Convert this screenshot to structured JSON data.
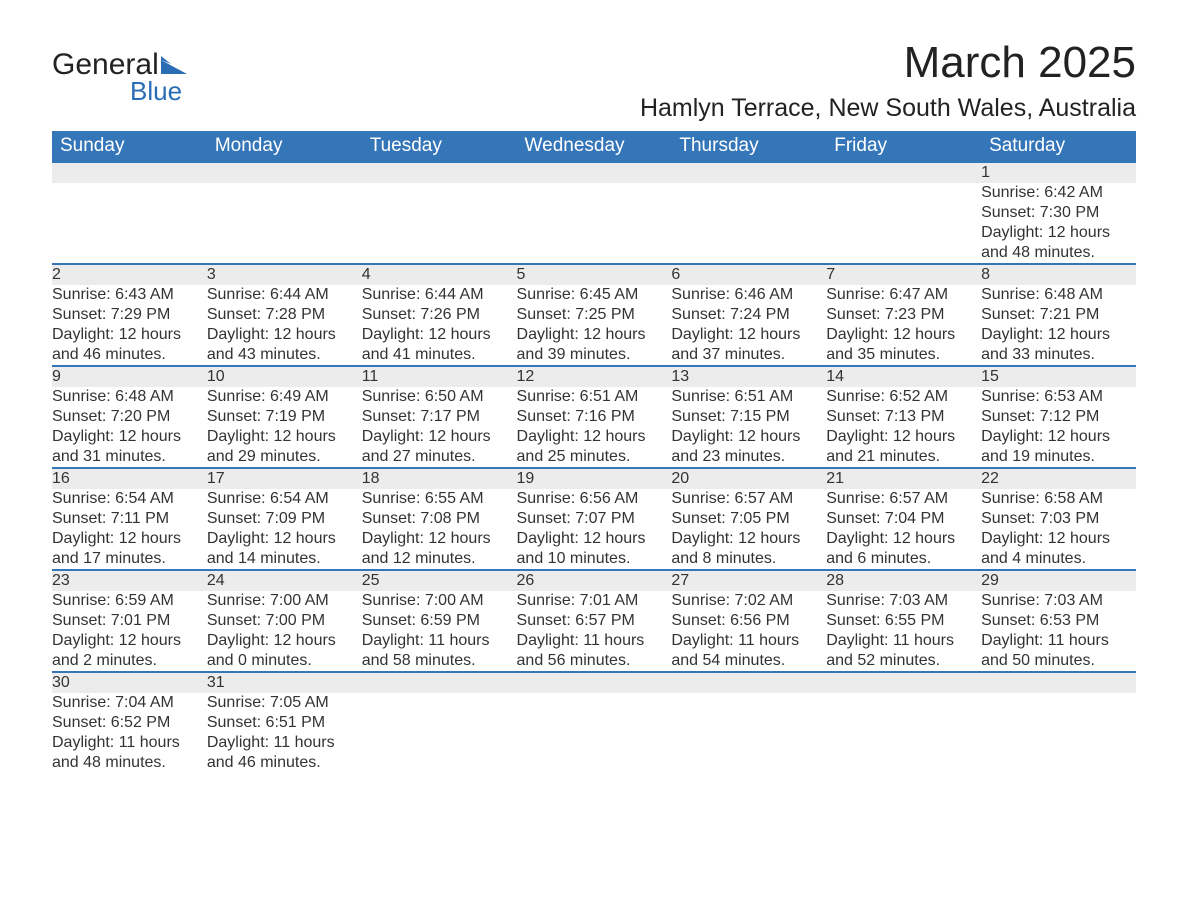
{
  "logo": {
    "word1": "General",
    "word2": "Blue",
    "text_color": "#222222",
    "accent_color": "#2a6db5"
  },
  "title": "March 2025",
  "location": "Hamlyn Terrace, New South Wales, Australia",
  "header_bg": "#3576b9",
  "header_text_color": "#ffffff",
  "daynum_bg": "#ececec",
  "row_divider_color": "#3576b9",
  "body_text_color": "#333333",
  "font_family": "Arial, Helvetica, sans-serif",
  "title_fontsize_pt": 33,
  "location_fontsize_pt": 19,
  "header_fontsize_pt": 14,
  "cell_fontsize_pt": 12,
  "day_headers": [
    "Sunday",
    "Monday",
    "Tuesday",
    "Wednesday",
    "Thursday",
    "Friday",
    "Saturday"
  ],
  "weeks": [
    [
      null,
      null,
      null,
      null,
      null,
      null,
      {
        "n": "1",
        "sunrise": "Sunrise: 6:42 AM",
        "sunset": "Sunset: 7:30 PM",
        "day1": "Daylight: 12 hours",
        "day2": "and 48 minutes."
      }
    ],
    [
      {
        "n": "2",
        "sunrise": "Sunrise: 6:43 AM",
        "sunset": "Sunset: 7:29 PM",
        "day1": "Daylight: 12 hours",
        "day2": "and 46 minutes."
      },
      {
        "n": "3",
        "sunrise": "Sunrise: 6:44 AM",
        "sunset": "Sunset: 7:28 PM",
        "day1": "Daylight: 12 hours",
        "day2": "and 43 minutes."
      },
      {
        "n": "4",
        "sunrise": "Sunrise: 6:44 AM",
        "sunset": "Sunset: 7:26 PM",
        "day1": "Daylight: 12 hours",
        "day2": "and 41 minutes."
      },
      {
        "n": "5",
        "sunrise": "Sunrise: 6:45 AM",
        "sunset": "Sunset: 7:25 PM",
        "day1": "Daylight: 12 hours",
        "day2": "and 39 minutes."
      },
      {
        "n": "6",
        "sunrise": "Sunrise: 6:46 AM",
        "sunset": "Sunset: 7:24 PM",
        "day1": "Daylight: 12 hours",
        "day2": "and 37 minutes."
      },
      {
        "n": "7",
        "sunrise": "Sunrise: 6:47 AM",
        "sunset": "Sunset: 7:23 PM",
        "day1": "Daylight: 12 hours",
        "day2": "and 35 minutes."
      },
      {
        "n": "8",
        "sunrise": "Sunrise: 6:48 AM",
        "sunset": "Sunset: 7:21 PM",
        "day1": "Daylight: 12 hours",
        "day2": "and 33 minutes."
      }
    ],
    [
      {
        "n": "9",
        "sunrise": "Sunrise: 6:48 AM",
        "sunset": "Sunset: 7:20 PM",
        "day1": "Daylight: 12 hours",
        "day2": "and 31 minutes."
      },
      {
        "n": "10",
        "sunrise": "Sunrise: 6:49 AM",
        "sunset": "Sunset: 7:19 PM",
        "day1": "Daylight: 12 hours",
        "day2": "and 29 minutes."
      },
      {
        "n": "11",
        "sunrise": "Sunrise: 6:50 AM",
        "sunset": "Sunset: 7:17 PM",
        "day1": "Daylight: 12 hours",
        "day2": "and 27 minutes."
      },
      {
        "n": "12",
        "sunrise": "Sunrise: 6:51 AM",
        "sunset": "Sunset: 7:16 PM",
        "day1": "Daylight: 12 hours",
        "day2": "and 25 minutes."
      },
      {
        "n": "13",
        "sunrise": "Sunrise: 6:51 AM",
        "sunset": "Sunset: 7:15 PM",
        "day1": "Daylight: 12 hours",
        "day2": "and 23 minutes."
      },
      {
        "n": "14",
        "sunrise": "Sunrise: 6:52 AM",
        "sunset": "Sunset: 7:13 PM",
        "day1": "Daylight: 12 hours",
        "day2": "and 21 minutes."
      },
      {
        "n": "15",
        "sunrise": "Sunrise: 6:53 AM",
        "sunset": "Sunset: 7:12 PM",
        "day1": "Daylight: 12 hours",
        "day2": "and 19 minutes."
      }
    ],
    [
      {
        "n": "16",
        "sunrise": "Sunrise: 6:54 AM",
        "sunset": "Sunset: 7:11 PM",
        "day1": "Daylight: 12 hours",
        "day2": "and 17 minutes."
      },
      {
        "n": "17",
        "sunrise": "Sunrise: 6:54 AM",
        "sunset": "Sunset: 7:09 PM",
        "day1": "Daylight: 12 hours",
        "day2": "and 14 minutes."
      },
      {
        "n": "18",
        "sunrise": "Sunrise: 6:55 AM",
        "sunset": "Sunset: 7:08 PM",
        "day1": "Daylight: 12 hours",
        "day2": "and 12 minutes."
      },
      {
        "n": "19",
        "sunrise": "Sunrise: 6:56 AM",
        "sunset": "Sunset: 7:07 PM",
        "day1": "Daylight: 12 hours",
        "day2": "and 10 minutes."
      },
      {
        "n": "20",
        "sunrise": "Sunrise: 6:57 AM",
        "sunset": "Sunset: 7:05 PM",
        "day1": "Daylight: 12 hours",
        "day2": "and 8 minutes."
      },
      {
        "n": "21",
        "sunrise": "Sunrise: 6:57 AM",
        "sunset": "Sunset: 7:04 PM",
        "day1": "Daylight: 12 hours",
        "day2": "and 6 minutes."
      },
      {
        "n": "22",
        "sunrise": "Sunrise: 6:58 AM",
        "sunset": "Sunset: 7:03 PM",
        "day1": "Daylight: 12 hours",
        "day2": "and 4 minutes."
      }
    ],
    [
      {
        "n": "23",
        "sunrise": "Sunrise: 6:59 AM",
        "sunset": "Sunset: 7:01 PM",
        "day1": "Daylight: 12 hours",
        "day2": "and 2 minutes."
      },
      {
        "n": "24",
        "sunrise": "Sunrise: 7:00 AM",
        "sunset": "Sunset: 7:00 PM",
        "day1": "Daylight: 12 hours",
        "day2": "and 0 minutes."
      },
      {
        "n": "25",
        "sunrise": "Sunrise: 7:00 AM",
        "sunset": "Sunset: 6:59 PM",
        "day1": "Daylight: 11 hours",
        "day2": "and 58 minutes."
      },
      {
        "n": "26",
        "sunrise": "Sunrise: 7:01 AM",
        "sunset": "Sunset: 6:57 PM",
        "day1": "Daylight: 11 hours",
        "day2": "and 56 minutes."
      },
      {
        "n": "27",
        "sunrise": "Sunrise: 7:02 AM",
        "sunset": "Sunset: 6:56 PM",
        "day1": "Daylight: 11 hours",
        "day2": "and 54 minutes."
      },
      {
        "n": "28",
        "sunrise": "Sunrise: 7:03 AM",
        "sunset": "Sunset: 6:55 PM",
        "day1": "Daylight: 11 hours",
        "day2": "and 52 minutes."
      },
      {
        "n": "29",
        "sunrise": "Sunrise: 7:03 AM",
        "sunset": "Sunset: 6:53 PM",
        "day1": "Daylight: 11 hours",
        "day2": "and 50 minutes."
      }
    ],
    [
      {
        "n": "30",
        "sunrise": "Sunrise: 7:04 AM",
        "sunset": "Sunset: 6:52 PM",
        "day1": "Daylight: 11 hours",
        "day2": "and 48 minutes."
      },
      {
        "n": "31",
        "sunrise": "Sunrise: 7:05 AM",
        "sunset": "Sunset: 6:51 PM",
        "day1": "Daylight: 11 hours",
        "day2": "and 46 minutes."
      },
      null,
      null,
      null,
      null,
      null
    ]
  ]
}
